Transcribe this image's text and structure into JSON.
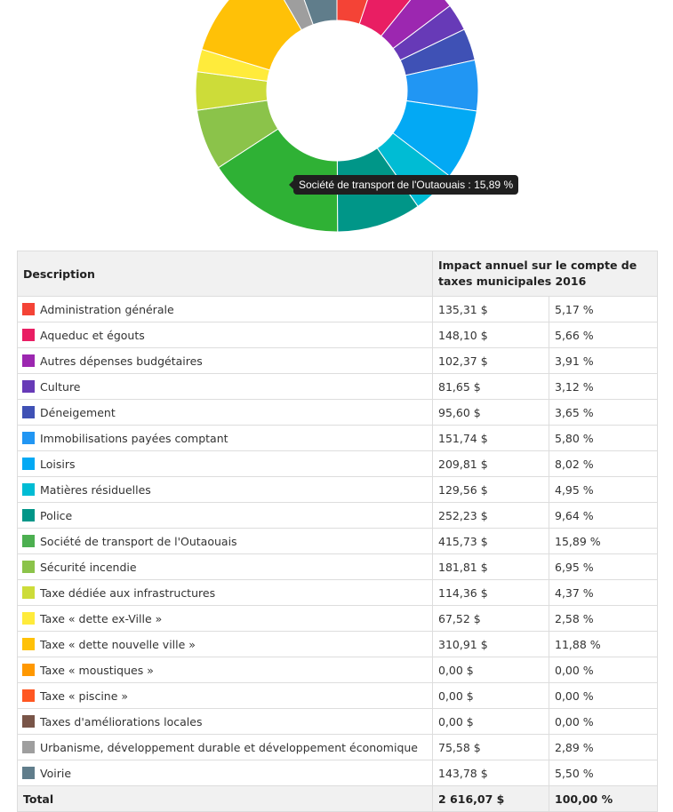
{
  "tooltip": {
    "text": "Société de transport de l'Outaouais : 15,89 %"
  },
  "table": {
    "header_description": "Description",
    "header_impact": "Impact annuel sur le compte de taxes municipales 2016",
    "total_label": "Total",
    "total_amount": "2 616,07 $",
    "total_percent": "100,00 %"
  },
  "rows": [
    {
      "label": "Administration générale",
      "amount": "135,31 $",
      "percent": "5,17 %",
      "color": "#f44336"
    },
    {
      "label": "Aqueduc et égouts",
      "amount": "148,10 $",
      "percent": "5,66 %",
      "color": "#e91e63"
    },
    {
      "label": "Autres dépenses budgétaires",
      "amount": "102,37 $",
      "percent": "3,91 %",
      "color": "#9c27b0"
    },
    {
      "label": "Culture",
      "amount": "81,65 $",
      "percent": "3,12 %",
      "color": "#673ab7"
    },
    {
      "label": "Déneigement",
      "amount": "95,60 $",
      "percent": "3,65 %",
      "color": "#3f51b5"
    },
    {
      "label": "Immobilisations payées comptant",
      "amount": "151,74 $",
      "percent": "5,80 %",
      "color": "#2196f3"
    },
    {
      "label": "Loisirs",
      "amount": "209,81 $",
      "percent": "8,02 %",
      "color": "#03a9f4"
    },
    {
      "label": "Matières résiduelles",
      "amount": "129,56 $",
      "percent": "4,95 %",
      "color": "#00bcd4"
    },
    {
      "label": "Police",
      "amount": "252,23 $",
      "percent": "9,64 %",
      "color": "#009688"
    },
    {
      "label": "Société de transport de l'Outaouais",
      "amount": "415,73 $",
      "percent": "15,89 %",
      "color": "#4caf50"
    },
    {
      "label": "Sécurité incendie",
      "amount": "181,81 $",
      "percent": "6,95 %",
      "color": "#8bc34a"
    },
    {
      "label": "Taxe dédiée aux infrastructures",
      "amount": "114,36 $",
      "percent": "4,37 %",
      "color": "#cddc39"
    },
    {
      "label": "Taxe « dette ex-Ville »",
      "amount": "67,52 $",
      "percent": "2,58 %",
      "color": "#ffeb3b"
    },
    {
      "label": "Taxe « dette nouvelle ville »",
      "amount": "310,91 $",
      "percent": "11,88 %",
      "color": "#ffc107"
    },
    {
      "label": "Taxe « moustiques »",
      "amount": "0,00 $",
      "percent": "0,00 %",
      "color": "#ff9800"
    },
    {
      "label": "Taxe « piscine »",
      "amount": "0,00 $",
      "percent": "0,00 %",
      "color": "#ff5722"
    },
    {
      "label": "Taxes d'améliorations locales",
      "amount": "0,00 $",
      "percent": "0,00 %",
      "color": "#795548"
    },
    {
      "label": "Urbanisme, développement durable et développement économique",
      "amount": "75,58 $",
      "percent": "2,89 %",
      "color": "#9e9e9e"
    },
    {
      "label": "Voirie",
      "amount": "143,78 $",
      "percent": "5,50 %",
      "color": "#607d8b"
    }
  ],
  "chart_data": {
    "type": "pie",
    "donut": true,
    "highlighted": "Société de transport de l'Outaouais",
    "unit": "%",
    "slices": [
      {
        "label": "Administration générale",
        "value": 5.17,
        "color": "#f44336"
      },
      {
        "label": "Aqueduc et égouts",
        "value": 5.66,
        "color": "#e91e63"
      },
      {
        "label": "Autres dépenses budgétaires",
        "value": 3.91,
        "color": "#9c27b0"
      },
      {
        "label": "Culture",
        "value": 3.12,
        "color": "#673ab7"
      },
      {
        "label": "Déneigement",
        "value": 3.65,
        "color": "#3f51b5"
      },
      {
        "label": "Immobilisations payées comptant",
        "value": 5.8,
        "color": "#2196f3"
      },
      {
        "label": "Loisirs",
        "value": 8.02,
        "color": "#03a9f4"
      },
      {
        "label": "Matières résiduelles",
        "value": 4.95,
        "color": "#00bcd4"
      },
      {
        "label": "Police",
        "value": 9.64,
        "color": "#009688"
      },
      {
        "label": "Société de transport de l'Outaouais",
        "value": 15.89,
        "color": "#2fb135"
      },
      {
        "label": "Sécurité incendie",
        "value": 6.95,
        "color": "#8bc34a"
      },
      {
        "label": "Taxe dédiée aux infrastructures",
        "value": 4.37,
        "color": "#cddc39"
      },
      {
        "label": "Taxe « dette ex-Ville »",
        "value": 2.58,
        "color": "#ffeb3b"
      },
      {
        "label": "Taxe « dette nouvelle ville »",
        "value": 11.88,
        "color": "#ffc107"
      },
      {
        "label": "Taxe « moustiques »",
        "value": 0.0,
        "color": "#ff9800"
      },
      {
        "label": "Taxe « piscine »",
        "value": 0.0,
        "color": "#ff5722"
      },
      {
        "label": "Taxes d'améliorations locales",
        "value": 0.0,
        "color": "#795548"
      },
      {
        "label": "Urbanisme, développement durable et développement économique",
        "value": 2.89,
        "color": "#9e9e9e"
      },
      {
        "label": "Voirie",
        "value": 5.5,
        "color": "#607d8b"
      }
    ]
  }
}
